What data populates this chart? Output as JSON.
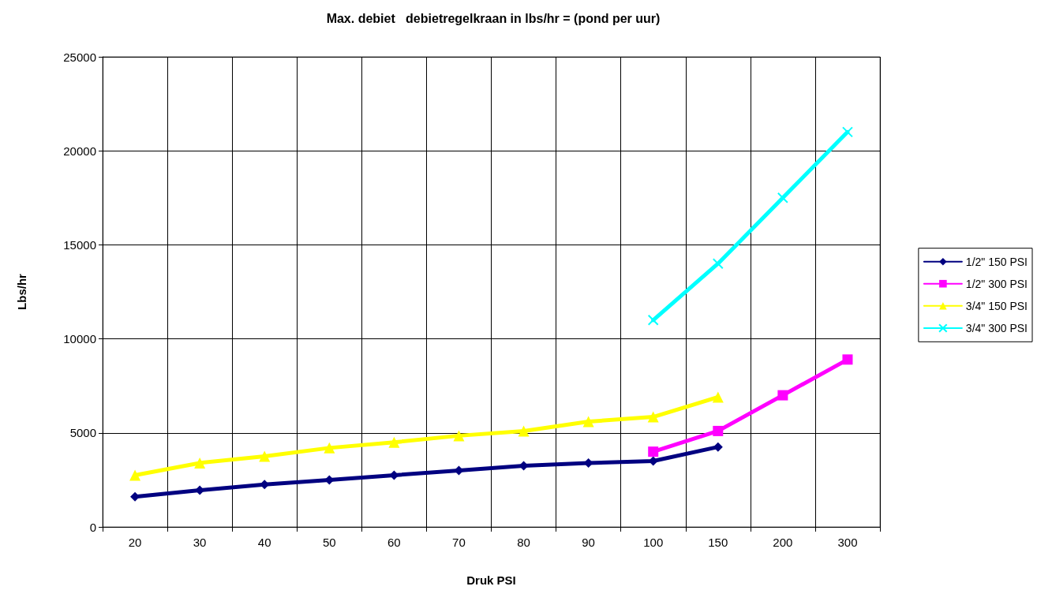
{
  "chart_data": {
    "type": "line",
    "title": "Max. debiet   debietregelkraan in lbs/hr = (pond per uur)",
    "xlabel": "Druk PSI",
    "ylabel": "Lbs/hr",
    "categories": [
      "20",
      "30",
      "40",
      "50",
      "60",
      "70",
      "80",
      "90",
      "100",
      "150",
      "200",
      "300"
    ],
    "series": [
      {
        "name": "1/2\" 150 PSI",
        "color": "#000080",
        "marker": "diamond",
        "values": [
          1600,
          1950,
          2250,
          2500,
          2750,
          3000,
          3250,
          3400,
          3500,
          4250,
          null,
          null
        ]
      },
      {
        "name": "1/2\" 300 PSI",
        "color": "#ff00ff",
        "marker": "square",
        "values": [
          null,
          null,
          null,
          null,
          null,
          null,
          null,
          null,
          4000,
          5100,
          7000,
          8900
        ]
      },
      {
        "name": "3/4\" 150 PSI",
        "color": "#ffff00",
        "marker": "triangle",
        "values": [
          2750,
          3400,
          3750,
          4200,
          4500,
          4850,
          5100,
          5600,
          5850,
          6900,
          null,
          null
        ]
      },
      {
        "name": "3/4\" 300 PSI",
        "color": "#00ffff",
        "marker": "cross",
        "values": [
          null,
          null,
          null,
          null,
          null,
          null,
          null,
          null,
          11000,
          14000,
          17500,
          21000
        ]
      }
    ],
    "ylim": [
      0,
      25000
    ],
    "yticks": [
      0,
      5000,
      10000,
      15000,
      20000,
      25000
    ],
    "grid": true,
    "legend": "right",
    "line_style": "solid"
  }
}
